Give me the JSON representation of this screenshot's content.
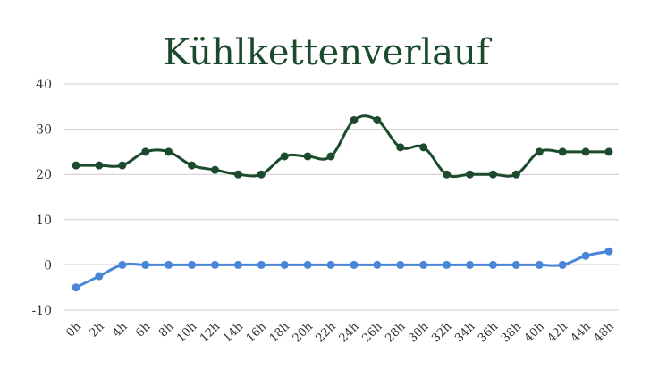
{
  "chart_data": {
    "type": "line",
    "title": "Kühlkettenverlauf",
    "xlabel": "",
    "ylabel": "",
    "ylim": [
      -10,
      40
    ],
    "yticks": [
      -10,
      0,
      10,
      20,
      30,
      40
    ],
    "grid": true,
    "legend": "none",
    "categories": [
      "0h",
      "2h",
      "4h",
      "6h",
      "8h",
      "10h",
      "12h",
      "14h",
      "16h",
      "18h",
      "20h",
      "22h",
      "24h",
      "26h",
      "28h",
      "30h",
      "32h",
      "34h",
      "36h",
      "38h",
      "40h",
      "42h",
      "44h",
      "48h"
    ],
    "series": [
      {
        "color": "#1b4a2c",
        "values": [
          22,
          22,
          22,
          25,
          25,
          22,
          21,
          20,
          20,
          24,
          24,
          24,
          32,
          32,
          26,
          26,
          20,
          20,
          20,
          20,
          25,
          25,
          25,
          25
        ]
      },
      {
        "color": "#4a86d8",
        "values": [
          -5,
          -2.5,
          0,
          0,
          0,
          0,
          0,
          0,
          0,
          0,
          0,
          0,
          0,
          0,
          0,
          0,
          0,
          0,
          0,
          0,
          0,
          0,
          2,
          3
        ]
      }
    ]
  }
}
